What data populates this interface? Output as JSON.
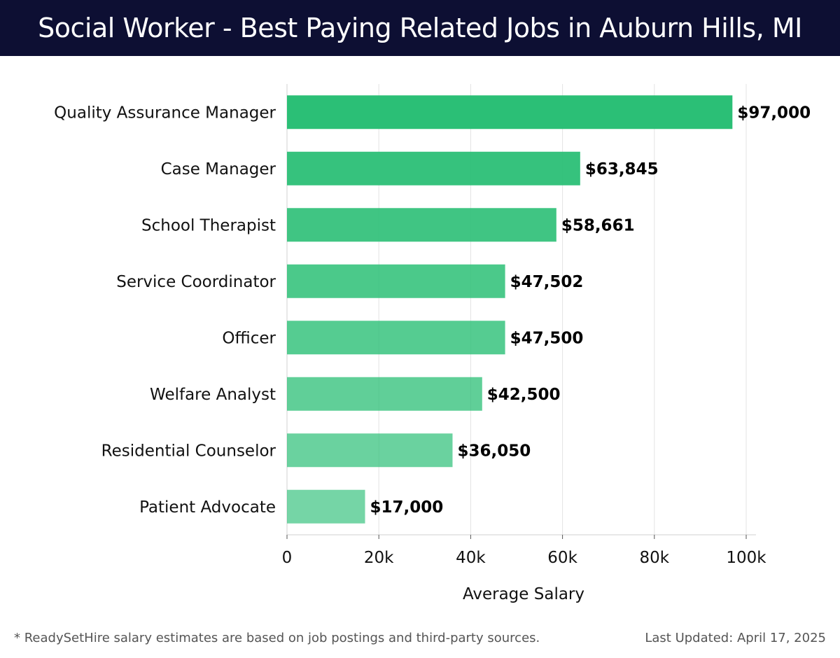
{
  "header": {
    "title": "Social Worker - Best Paying Related Jobs in Auburn Hills, MI"
  },
  "chart_data": {
    "type": "bar",
    "orientation": "horizontal",
    "categories": [
      "Quality Assurance Manager",
      "Case Manager",
      "School Therapist",
      "Service Coordinator",
      "Officer",
      "Welfare Analyst",
      "Residential Counselor",
      "Patient Advocate"
    ],
    "values": [
      97000,
      63845,
      58661,
      47502,
      47500,
      42500,
      36050,
      17000
    ],
    "value_labels": [
      "$97,000",
      "$63,845",
      "$58,661",
      "$47,502",
      "$47,500",
      "$42,500",
      "$36,050",
      "$17,000"
    ],
    "xlabel": "Average Salary",
    "ylabel": "",
    "xlim": [
      0,
      100000
    ],
    "xticks": [
      0,
      20000,
      40000,
      60000,
      80000,
      100000
    ],
    "xtick_labels": [
      "0",
      "20k",
      "40k",
      "60k",
      "80k",
      "100k"
    ],
    "grid": true,
    "bar_color": "#2bbf76"
  },
  "footer": {
    "note": "* ReadySetHire salary estimates are based on job postings and third-party sources.",
    "updated": "Last Updated: April 17, 2025"
  }
}
